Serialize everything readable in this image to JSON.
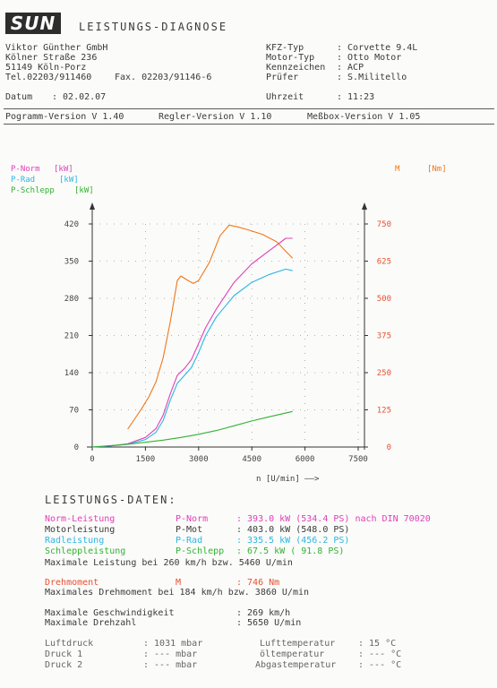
{
  "header": {
    "logo": "SUN",
    "title": "LEISTUNGS-DIAGNOSE",
    "company": "Viktor Günther GmbH",
    "street": "Kölner Straße 236",
    "city": "51149 Köln-Porz",
    "phone": "Tel.02203/911460",
    "fax": "Fax. 02203/91146-6",
    "date_label": "Datum",
    "date_value": ": 02.02.07",
    "vehicle": [
      {
        "label": "KFZ-Typ",
        "value": ": Corvette 9.4L"
      },
      {
        "label": "Motor-Typ",
        "value": ": Otto Motor"
      },
      {
        "label": "Kennzeichen",
        "value": ": ACP"
      },
      {
        "label": "Prüfer",
        "value": ": S.Militello"
      }
    ],
    "time_label": "Uhrzeit",
    "time_value": ": 11:23",
    "versions": [
      "Pogramm-Version V 1.40",
      "Regler-Version V 1.10",
      "Meßbox-Version V 1.05"
    ]
  },
  "legend": {
    "p_norm": "P-Norm",
    "p_rad": "P-Rad",
    "p_schlepp": "P-Schlepp",
    "kw_unit_1": "[kW]",
    "kw_unit_2": "[kW]",
    "kw_unit_3": "[kW]",
    "m_label": "M",
    "m_unit": "[Nm]"
  },
  "colors": {
    "p_norm": "#e040b8",
    "p_mot": "#e85030",
    "p_rad": "#2bb6e2",
    "p_schlepp": "#32b232",
    "torque": "#f07818"
  },
  "chart_data": {
    "type": "line",
    "xlabel": "n [U/min] ——>",
    "x_ticks": [
      "0",
      "1500",
      "3000",
      "4500",
      "6000",
      "7500"
    ],
    "xlim": [
      0,
      7500
    ],
    "left_axis": {
      "ticks": [
        "0",
        "70",
        "140",
        "210",
        "280",
        "350",
        "420"
      ],
      "ylim": [
        0,
        420
      ],
      "unit": "kW"
    },
    "right_axis": {
      "ticks": [
        "0",
        "125",
        "250",
        "375",
        "500",
        "625",
        "750"
      ],
      "ylim": [
        0,
        750
      ],
      "unit": "Nm"
    },
    "series": [
      {
        "name": "P-Norm",
        "axis": "left",
        "x": [
          0,
          500,
          1000,
          1500,
          1800,
          2000,
          2200,
          2400,
          2600,
          2800,
          3000,
          3200,
          3500,
          4000,
          4500,
          5000,
          5460,
          5650
        ],
        "y": [
          0,
          2,
          6,
          18,
          35,
          60,
          100,
          135,
          148,
          165,
          195,
          225,
          260,
          310,
          345,
          370,
          393,
          393
        ]
      },
      {
        "name": "P-Rad",
        "axis": "left",
        "x": [
          0,
          500,
          1000,
          1500,
          1800,
          2000,
          2200,
          2400,
          2600,
          2800,
          3000,
          3200,
          3500,
          4000,
          4500,
          5000,
          5460,
          5650
        ],
        "y": [
          0,
          2,
          5,
          14,
          28,
          50,
          88,
          120,
          135,
          150,
          178,
          210,
          245,
          285,
          310,
          325,
          335,
          332
        ]
      },
      {
        "name": "P-Schlepp",
        "axis": "left",
        "x": [
          0,
          1000,
          1500,
          2000,
          2500,
          3000,
          3500,
          4000,
          4500,
          5000,
          5650
        ],
        "y": [
          0,
          5,
          9,
          13,
          18,
          24,
          31,
          40,
          49,
          57,
          67
        ]
      },
      {
        "name": "M",
        "axis": "right",
        "x": [
          1000,
          1200,
          1400,
          1600,
          1800,
          2000,
          2200,
          2400,
          2500,
          2700,
          2850,
          3000,
          3300,
          3600,
          3860,
          4100,
          4400,
          4800,
          5200,
          5650
        ],
        "y": [
          60,
          95,
          130,
          170,
          220,
          300,
          420,
          560,
          575,
          560,
          550,
          560,
          620,
          710,
          746,
          740,
          730,
          715,
          690,
          635
        ]
      }
    ]
  },
  "data_title": "LEISTUNGS-DATEN:",
  "results": {
    "rows": [
      {
        "name": "Norm-Leistung",
        "sym": "P-Norm",
        "val": ": 393.0 kW (534.4 PS) nach DIN 70020",
        "color": "#e040b8"
      },
      {
        "name": "Motorleistung",
        "sym": "P-Mot",
        "val": ": 403.0 kW (548.0 PS)",
        "color": "#3a3a3a"
      },
      {
        "name": "Radleistung",
        "sym": "P-Rad",
        "val": ": 335.5 kW (456.2 PS)",
        "color": "#2bb6e2"
      },
      {
        "name": "Schleppleistung",
        "sym": "P-Schlepp",
        "val": ": 67.5 kW ( 91.8 PS)",
        "color": "#32b232"
      }
    ],
    "max_power": "Maximale Leistung bei 260 km/h bzw.  5460 U/min",
    "torque_name": "Drehmoment",
    "torque_sym": "M",
    "torque_val": ":   746  Nm",
    "max_torque": "Maximales Drehmoment bei 184 km/h bzw.  3860 U/min",
    "max_speed_label": "Maximale Geschwindigkeit",
    "max_speed_value": ":   269 km/h",
    "max_rpm_label": "Maximale Drehzahl",
    "max_rpm_value": ":   5650 U/min"
  },
  "ambient": [
    {
      "label": "Luftdruck",
      "value": ":    1031 mbar",
      "label2": "Lufttemperatur",
      "value2": ":     15 °C"
    },
    {
      "label": "Druck 1",
      "value": ":     --- mbar",
      "label2": "öltemperatur",
      "value2": ":    --- °C"
    },
    {
      "label": "Druck 2",
      "value": ":     --- mbar",
      "label2": "Abgastemperatur",
      "value2": ":  --- °C"
    }
  ]
}
